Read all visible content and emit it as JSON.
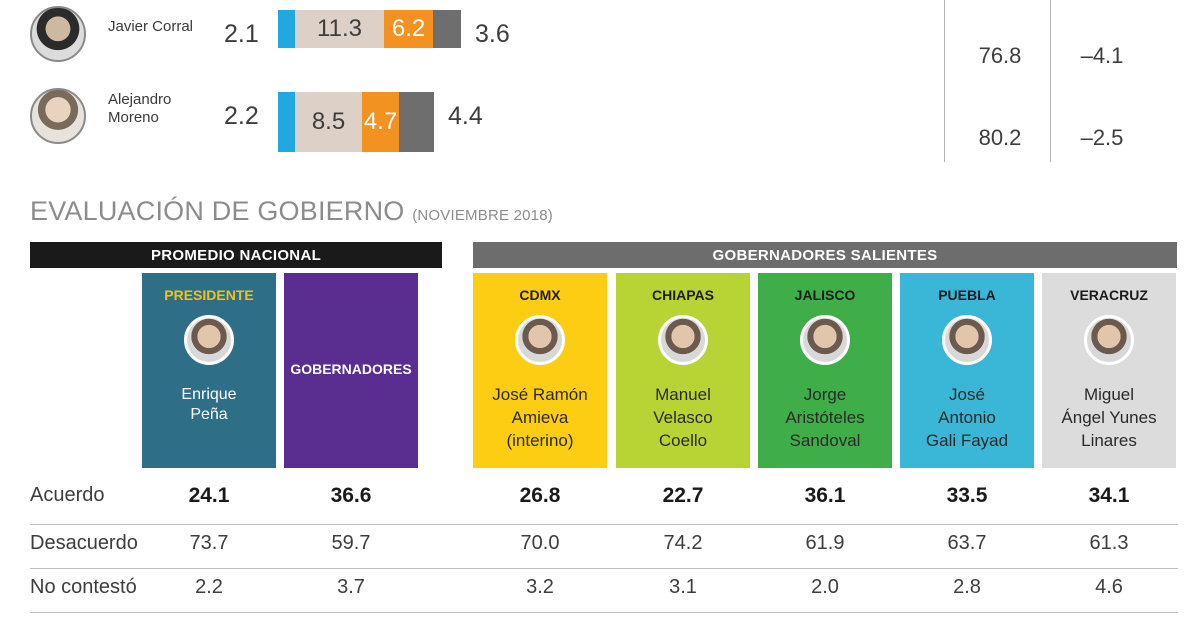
{
  "top_rows": [
    {
      "name_lines": [
        "Javier Corral"
      ],
      "val": "2.1",
      "bars": [
        {
          "color": "blue",
          "label": ""
        },
        {
          "color": "beige",
          "label": "11.3"
        },
        {
          "color": "orange",
          "label": "6.2"
        },
        {
          "color": "gray",
          "label": ""
        }
      ],
      "after": "3.6",
      "r1": "76.8",
      "r2": "–4.1"
    },
    {
      "name_lines": [
        "Alejandro",
        "Moreno"
      ],
      "val": "2.2",
      "bars": [
        {
          "color": "blue",
          "label": ""
        },
        {
          "color": "beige",
          "label": "8.5"
        },
        {
          "color": "orange",
          "label": "4.7"
        },
        {
          "color": "gray",
          "label": ""
        }
      ],
      "after": "4.4",
      "r1": "80.2",
      "r2": "–2.5"
    }
  ],
  "section": {
    "title": "EVALUACIÓN DE GOBIERNO",
    "sub": "(NOVIEMBRE 2018)"
  },
  "headers": {
    "nacional": "PROMEDIO NACIONAL",
    "salientes": "GOBERNADORES SALIENTES"
  },
  "cards": [
    {
      "label": "PRESIDENTE",
      "name": [
        "Enrique",
        "Peña"
      ],
      "color": "#2e6e86"
    },
    {
      "label": "GOBERNADORES",
      "name": [],
      "color": "#5a2d91"
    },
    {
      "label": "CDMX",
      "name": [
        "José Ramón",
        "Amieva",
        "(interino)"
      ],
      "color": "#fccd13"
    },
    {
      "label": "CHIAPAS",
      "name": [
        "Manuel",
        "Velasco",
        "Coello"
      ],
      "color": "#b7d334"
    },
    {
      "label": "JALISCO",
      "name": [
        "Jorge",
        "Aristóteles",
        "Sandoval"
      ],
      "color": "#3fae49"
    },
    {
      "label": "PUEBLA",
      "name": [
        "José",
        "Antonio",
        "Gali Fayad"
      ],
      "color": "#3ab6d6"
    },
    {
      "label": "VERACRUZ",
      "name": [
        "Miguel",
        "Ángel Yunes",
        "Linares"
      ],
      "color": "#dcdcdc"
    }
  ],
  "chart_data": {
    "type": "table",
    "title": "EVALUACIÓN DE GOBIERNO (NOVIEMBRE 2018)",
    "columns": [
      "PRESIDENTE Enrique Peña",
      "GOBERNADORES",
      "CDMX",
      "CHIAPAS",
      "JALISCO",
      "PUEBLA",
      "VERACRUZ"
    ],
    "rows": [
      {
        "label": "Acuerdo",
        "values": [
          "24.1",
          "36.6",
          "26.8",
          "22.7",
          "36.1",
          "33.5",
          "34.1"
        ]
      },
      {
        "label": "Desacuerdo",
        "values": [
          "73.7",
          "59.7",
          "70.0",
          "74.2",
          "61.9",
          "63.7",
          "61.3"
        ]
      },
      {
        "label": "No contestó",
        "values": [
          "2.2",
          "3.7",
          "3.2",
          "3.1",
          "2.0",
          "2.8",
          "4.6"
        ]
      }
    ],
    "top_bars": [
      {
        "name": "Javier Corral",
        "values": [
          2.1,
          11.3,
          6.2,
          3.6
        ]
      },
      {
        "name": "Alejandro Moreno",
        "values": [
          2.2,
          8.5,
          4.7,
          4.4
        ]
      }
    ]
  }
}
